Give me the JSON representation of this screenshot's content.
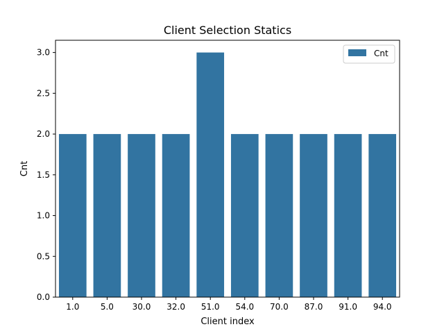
{
  "chart_data": {
    "type": "bar",
    "title": "Client Selection Statics",
    "xlabel": "Client index",
    "ylabel": "Cnt",
    "categories": [
      "1.0",
      "5.0",
      "30.0",
      "32.0",
      "51.0",
      "54.0",
      "70.0",
      "87.0",
      "91.0",
      "94.0"
    ],
    "series": [
      {
        "name": "Cnt",
        "values": [
          2,
          2,
          2,
          2,
          3,
          2,
          2,
          2,
          2,
          2
        ],
        "color": "#3274a1"
      }
    ],
    "ylim": [
      0,
      3.15
    ],
    "yticks": [
      "0.0",
      "0.5",
      "1.0",
      "1.5",
      "2.0",
      "2.5",
      "3.0"
    ],
    "grid": false,
    "legend_position": "upper right"
  }
}
